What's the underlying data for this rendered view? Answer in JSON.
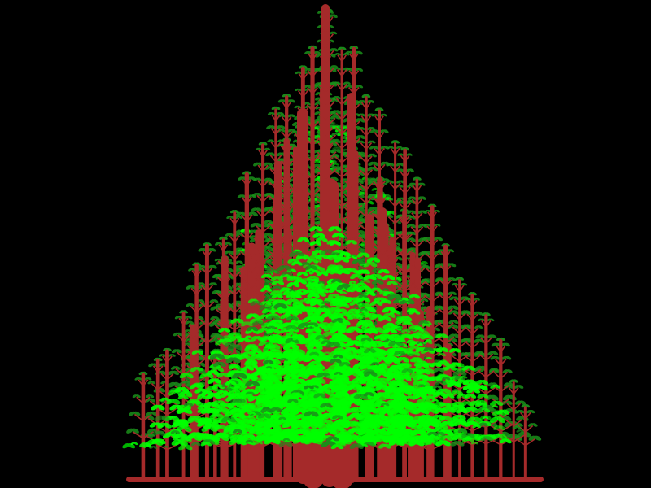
{
  "scene": {
    "background": "#000000",
    "trunk_color": "#a52a2a",
    "leaf_color": "#00ff00",
    "leaf_dark_color": "#1a8f1a"
  }
}
